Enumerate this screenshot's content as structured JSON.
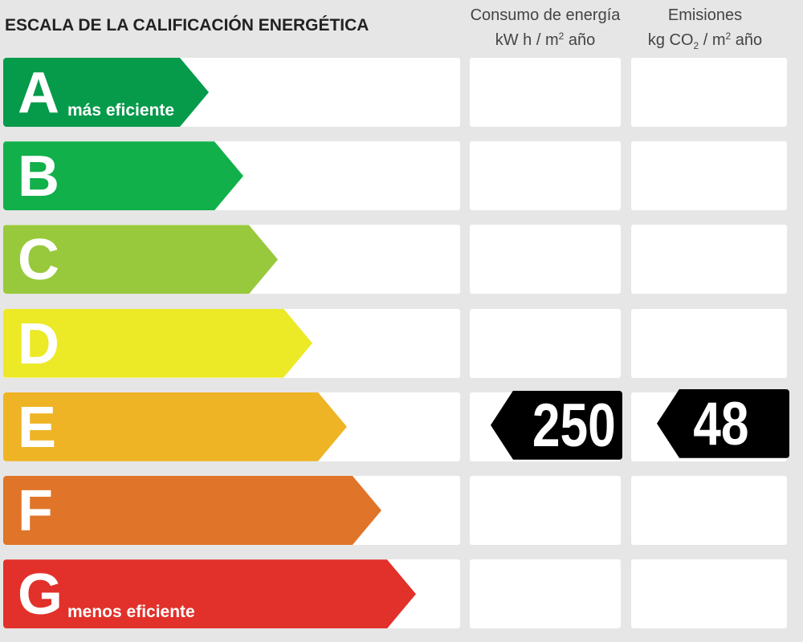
{
  "title": "ESCALA DE LA CALIFICACIÓN ENERGÉTICA",
  "columns": {
    "consumo": {
      "line1": "Consumo de energía",
      "unit_a": "kW h  / m",
      "sup": "2",
      "unit_b": " año"
    },
    "emisiones": {
      "line1": "Emisiones",
      "unit_a": "kg CO",
      "sub": "2",
      "unit_mid": "  / m",
      "sup": "2",
      "unit_b": " año"
    }
  },
  "ratings": [
    {
      "letter": "A",
      "label": "más eficiente",
      "color": "#069a4b"
    },
    {
      "letter": "B",
      "label": "",
      "color": "#12b04a"
    },
    {
      "letter": "C",
      "label": "",
      "color": "#98c93c"
    },
    {
      "letter": "D",
      "label": "",
      "color": "#ece926"
    },
    {
      "letter": "E",
      "label": "",
      "color": "#eeb425"
    },
    {
      "letter": "F",
      "label": "",
      "color": "#e07429"
    },
    {
      "letter": "G",
      "label": "menos eficiente",
      "color": "#e1312a"
    }
  ],
  "result": {
    "rating": "E",
    "consumo": "250",
    "emisiones": "48"
  }
}
